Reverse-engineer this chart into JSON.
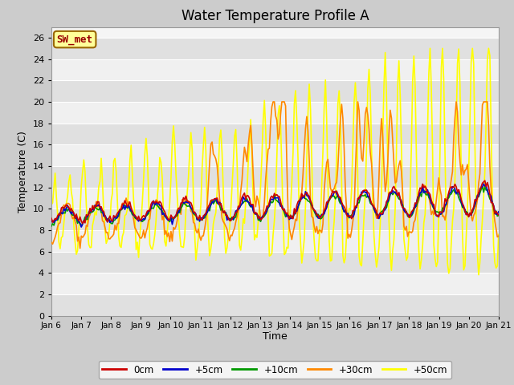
{
  "title": "Water Temperature Profile A",
  "xlabel": "Time",
  "ylabel": "Temperature (C)",
  "ylim": [
    0,
    27
  ],
  "yticks": [
    0,
    2,
    4,
    6,
    8,
    10,
    12,
    14,
    16,
    18,
    20,
    22,
    24,
    26
  ],
  "annotation_text": "SW_met",
  "annotation_bg": "#FFFF99",
  "annotation_border": "#996600",
  "annotation_text_color": "#990000",
  "line_colors": {
    "0cm": "#CC0000",
    "+5cm": "#0000CC",
    "+10cm": "#009900",
    "+30cm": "#FF8800",
    "+50cm": "#FFFF00"
  },
  "x_tick_labels": [
    "Jan 6",
    "Jan 7",
    "Jan 8",
    "Jan 9",
    "Jan 10",
    "Jan 11",
    "Jan 12",
    "Jan 13",
    "Jan 14",
    "Jan 15",
    "Jan 16",
    "Jan 17",
    "Jan 18",
    "Jan 19",
    "Jan 20",
    "Jan 21"
  ],
  "title_fontsize": 12,
  "legend_labels": [
    "0cm",
    "+5cm",
    "+10cm",
    "+30cm",
    "+50cm"
  ]
}
